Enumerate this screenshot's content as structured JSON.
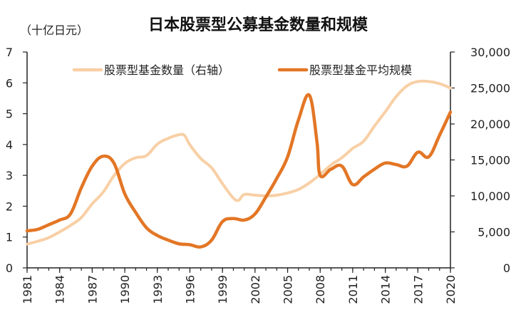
{
  "chart_data": {
    "type": "line",
    "title": "日本股票型公募基金数量和规模",
    "left_unit": "（十亿日元）",
    "x_ticks": [
      "1981",
      "1984",
      "1987",
      "1990",
      "1993",
      "1996",
      "1999",
      "2002",
      "2005",
      "2008",
      "2011",
      "2014",
      "2017",
      "2020"
    ],
    "left_ticks": [
      "0",
      "1",
      "2",
      "3",
      "4",
      "5",
      "6",
      "7"
    ],
    "right_ticks": [
      "0",
      "5,000",
      "10,000",
      "15,000",
      "20,000",
      "25,000",
      "30,000"
    ],
    "xlim": [
      1981,
      2020
    ],
    "ylim_left": [
      0,
      7
    ],
    "ylim_right": [
      0,
      30000
    ],
    "grid": false,
    "legend_position": "top",
    "series": [
      {
        "name": "股票型基金数量（右轴）",
        "axis": "right",
        "color": "#F8CFA5",
        "x": [
          1981,
          1982,
          1983,
          1984,
          1985,
          1986,
          1987,
          1988,
          1989,
          1990,
          1991,
          1992,
          1993,
          1994,
          1995,
          1995.5,
          1996,
          1997,
          1998,
          1999,
          2000,
          2000.5,
          2001,
          2002,
          2003,
          2004,
          2005,
          2006,
          2007,
          2008,
          2009,
          2010,
          2011,
          2012,
          2013,
          2014,
          2015,
          2016,
          2017,
          2018,
          2019,
          2020
        ],
        "values": [
          3300,
          3700,
          4200,
          5000,
          5900,
          7000,
          8900,
          10500,
          12800,
          14500,
          15300,
          15600,
          17200,
          18000,
          18500,
          18400,
          17100,
          15200,
          13900,
          11700,
          9700,
          9400,
          10200,
          10100,
          10000,
          10100,
          10400,
          10900,
          11800,
          13000,
          14300,
          15300,
          16600,
          17600,
          19700,
          21700,
          23800,
          25300,
          25900,
          25900,
          25600,
          25000
        ]
      },
      {
        "name": "股票型基金平均规模",
        "axis": "left",
        "color": "#E37625",
        "x": [
          1981,
          1982,
          1983,
          1984,
          1985,
          1986,
          1987,
          1988,
          1989,
          1990,
          1991,
          1992,
          1993,
          1994,
          1995,
          1996,
          1997,
          1998,
          1999,
          2000,
          2001,
          2002,
          2003,
          2004,
          2005,
          2006,
          2007,
          2007.7,
          2008,
          2009,
          2010,
          2011,
          2012,
          2013,
          2014,
          2015,
          2016,
          2017,
          2018,
          2019,
          2020
        ],
        "values": [
          1.2,
          1.25,
          1.4,
          1.55,
          1.75,
          2.6,
          3.3,
          3.62,
          3.4,
          2.4,
          1.8,
          1.3,
          1.05,
          0.9,
          0.78,
          0.75,
          0.68,
          0.9,
          1.5,
          1.6,
          1.55,
          1.75,
          2.3,
          2.9,
          3.6,
          4.8,
          5.6,
          4.1,
          3.0,
          3.2,
          3.3,
          2.7,
          2.95,
          3.2,
          3.4,
          3.35,
          3.3,
          3.75,
          3.6,
          4.3,
          5.05
        ]
      }
    ]
  }
}
